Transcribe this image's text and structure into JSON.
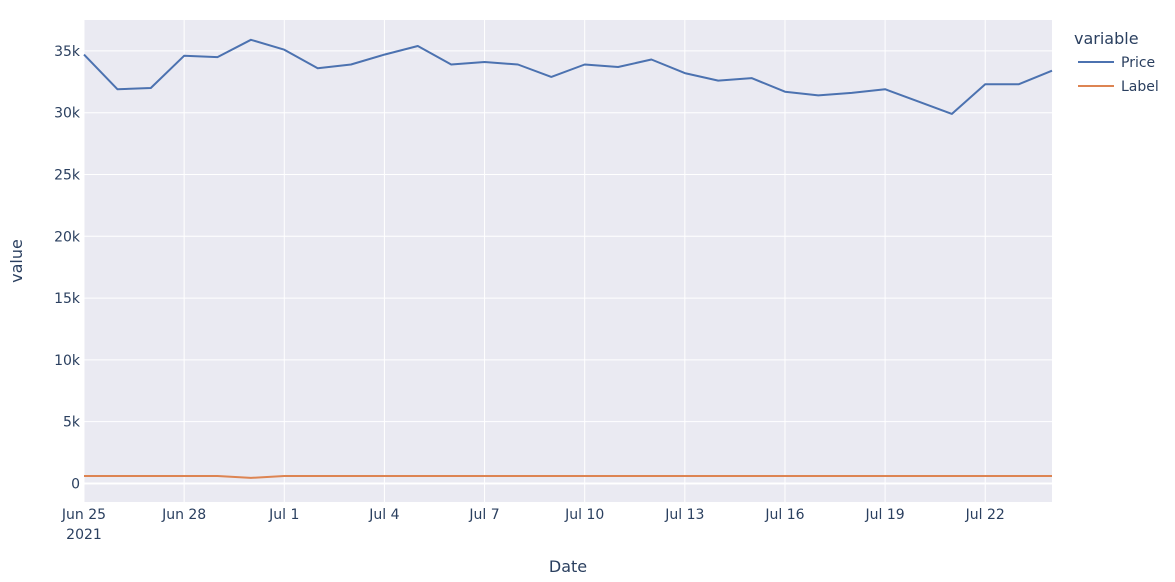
{
  "chart_data": {
    "type": "line",
    "title": "",
    "xlabel": "Date",
    "ylabel": "value",
    "legend": {
      "title": "variable",
      "placement": "top-right, outside plot"
    },
    "grid": true,
    "xlim": [
      "2021-06-25",
      "2021-07-24"
    ],
    "ylim": [
      -1500,
      37500
    ],
    "x_ticks": [
      {
        "date": "2021-06-25",
        "label": "Jun 25",
        "sublabel": "2021"
      },
      {
        "date": "2021-06-28",
        "label": "Jun 28"
      },
      {
        "date": "2021-07-01",
        "label": "Jul 1"
      },
      {
        "date": "2021-07-04",
        "label": "Jul 4"
      },
      {
        "date": "2021-07-07",
        "label": "Jul 7"
      },
      {
        "date": "2021-07-10",
        "label": "Jul 10"
      },
      {
        "date": "2021-07-13",
        "label": "Jul 13"
      },
      {
        "date": "2021-07-16",
        "label": "Jul 16"
      },
      {
        "date": "2021-07-19",
        "label": "Jul 19"
      },
      {
        "date": "2021-07-22",
        "label": "Jul 22"
      }
    ],
    "y_ticks": [
      {
        "value": 0,
        "label": "0"
      },
      {
        "value": 5000,
        "label": "5k"
      },
      {
        "value": 10000,
        "label": "10k"
      },
      {
        "value": 15000,
        "label": "15k"
      },
      {
        "value": 20000,
        "label": "20k"
      },
      {
        "value": 25000,
        "label": "25k"
      },
      {
        "value": 30000,
        "label": "30k"
      },
      {
        "value": 35000,
        "label": "35k"
      }
    ],
    "x": [
      "2021-06-25",
      "2021-06-26",
      "2021-06-27",
      "2021-06-28",
      "2021-06-29",
      "2021-06-30",
      "2021-07-01",
      "2021-07-02",
      "2021-07-03",
      "2021-07-04",
      "2021-07-05",
      "2021-07-06",
      "2021-07-07",
      "2021-07-08",
      "2021-07-09",
      "2021-07-10",
      "2021-07-11",
      "2021-07-12",
      "2021-07-13",
      "2021-07-14",
      "2021-07-15",
      "2021-07-16",
      "2021-07-17",
      "2021-07-18",
      "2021-07-19",
      "2021-07-20",
      "2021-07-21",
      "2021-07-22",
      "2021-07-23",
      "2021-07-24"
    ],
    "series": [
      {
        "name": "Price",
        "color": "#4c72b0",
        "values": [
          34700,
          31900,
          32000,
          34600,
          34500,
          35900,
          35100,
          33600,
          33900,
          34700,
          35400,
          33900,
          34100,
          33900,
          32900,
          33900,
          33700,
          34300,
          33200,
          32600,
          32800,
          31700,
          31400,
          31600,
          31900,
          30900,
          29900,
          32300,
          32300,
          33400
        ]
      },
      {
        "name": "Label",
        "color": "#dd8452",
        "values": [
          600,
          600,
          600,
          600,
          600,
          450,
          600,
          600,
          600,
          600,
          600,
          600,
          600,
          600,
          600,
          600,
          600,
          600,
          600,
          600,
          600,
          600,
          600,
          600,
          600,
          600,
          600,
          600,
          600,
          600
        ]
      }
    ]
  }
}
